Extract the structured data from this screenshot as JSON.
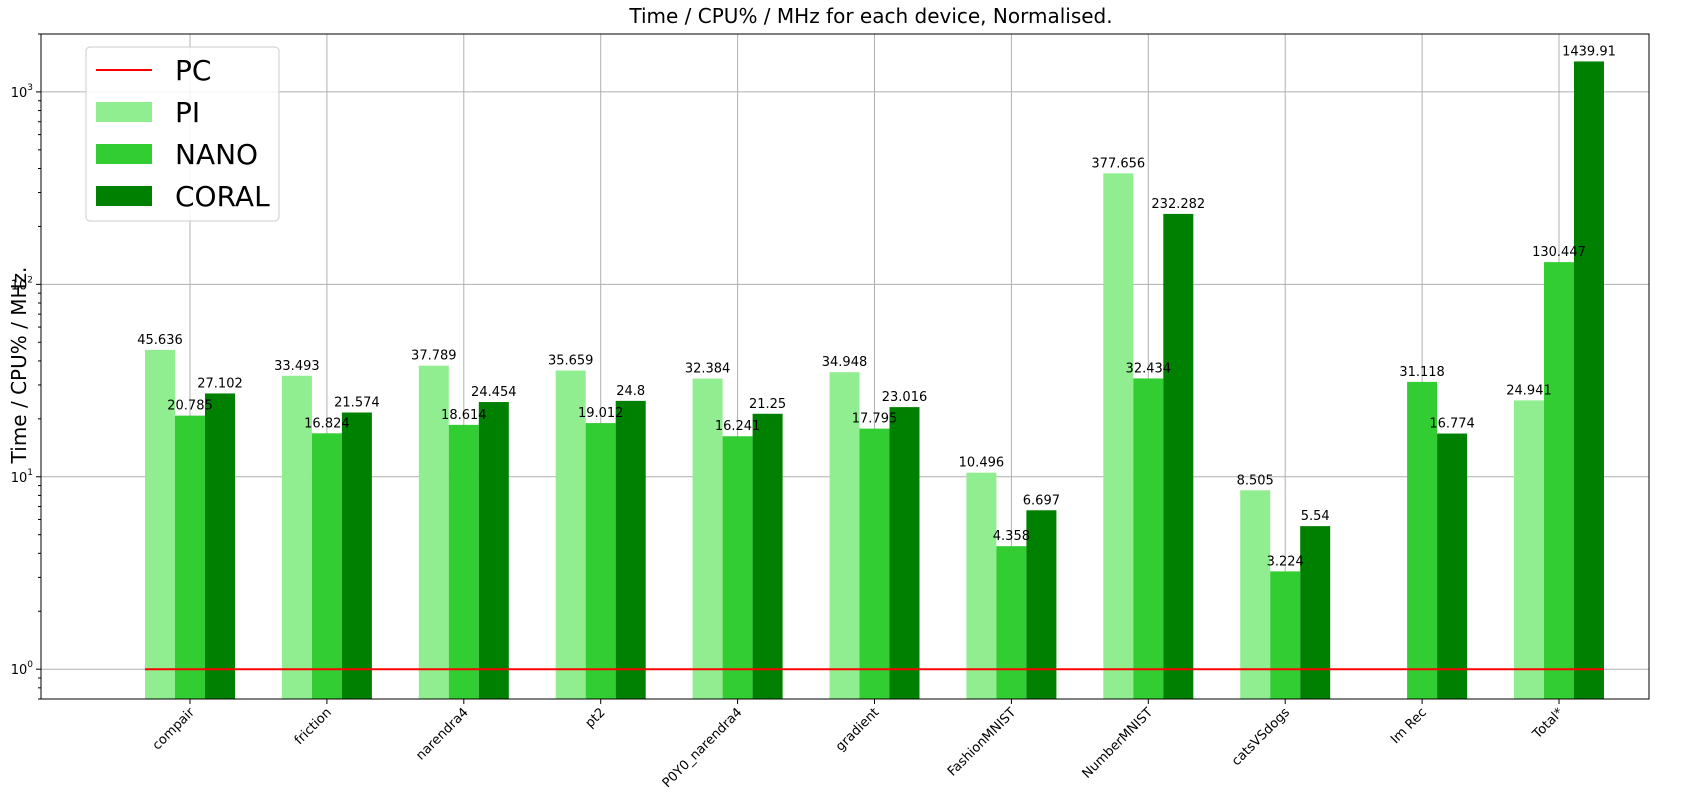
{
  "chart_data": {
    "type": "bar",
    "title": "Time / CPU% / MHz for each device, Normalised.",
    "xlabel": "",
    "ylabel": "Time / CPU% / MHz.",
    "yscale": "log",
    "ylim": [
      0.7,
      2000
    ],
    "y_ticks": [
      {
        "base": "10",
        "exp": "0",
        "value": 1
      },
      {
        "base": "10",
        "exp": "1",
        "value": 10
      },
      {
        "base": "10",
        "exp": "2",
        "value": 100
      },
      {
        "base": "10",
        "exp": "3",
        "value": 1000
      }
    ],
    "grid": true,
    "legend_position": "top-left",
    "categories": [
      "compair",
      "friction",
      "narendra4",
      "pt2",
      "P0Y0_narendra4",
      "gradient",
      "FashionMNIST",
      "NumberMNIST",
      "catsVSdogs",
      "Im Rec",
      "Total*"
    ],
    "reference_line": {
      "name": "PC",
      "value": 1,
      "color": "#ff0000"
    },
    "series": [
      {
        "name": "PI",
        "color": "#90ee90",
        "values": [
          45.636,
          33.493,
          37.789,
          35.659,
          32.384,
          34.948,
          10.496,
          377.656,
          8.505,
          null,
          24.941
        ],
        "labels": [
          "45.636",
          "33.493",
          "37.789",
          "35.659",
          "32.384",
          "34.948",
          "10.496",
          "377.656",
          "8.505",
          null,
          "24.941"
        ]
      },
      {
        "name": "NANO",
        "color": "#32cd32",
        "values": [
          20.785,
          16.824,
          18.614,
          19.012,
          16.241,
          17.795,
          4.358,
          32.434,
          3.224,
          31.118,
          130.447
        ],
        "labels": [
          "20.785",
          "16.824",
          "18.614",
          "19.012",
          "16.241",
          "17.795",
          "4.358",
          "32.434",
          "3.224",
          "31.118",
          "130.447"
        ]
      },
      {
        "name": "CORAL",
        "color": "#008000",
        "values": [
          27.102,
          21.574,
          24.454,
          24.8,
          21.25,
          23.016,
          6.697,
          232.282,
          5.54,
          16.774,
          1439.91
        ],
        "labels": [
          "27.102",
          "21.574",
          "24.454",
          "24.8",
          "21.25",
          "23.016",
          "6.697",
          "232.282",
          "5.54",
          "16.774",
          "1439.91"
        ]
      }
    ]
  }
}
